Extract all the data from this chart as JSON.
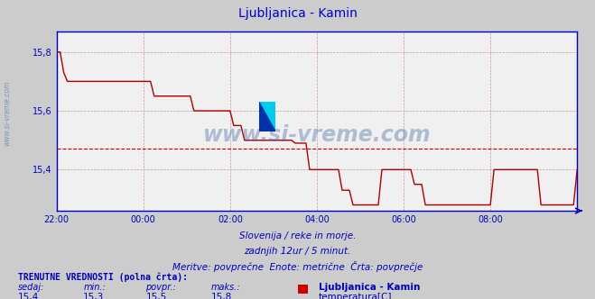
{
  "title": "Ljubljanica - Kamin",
  "title_color": "#0000cc",
  "bg_color": "#cccccc",
  "plot_bg_color": "#f0f0f0",
  "line_color": "#aa0000",
  "avg_line_color": "#cc0000",
  "avg_line_value": 15.47,
  "grid_color": "#cc9999",
  "axis_color": "#0000bb",
  "xmin": 0,
  "xmax": 144,
  "ymin": 15.26,
  "ymax": 15.87,
  "yticks": [
    15.4,
    15.6,
    15.8
  ],
  "ytick_labels": [
    "15,4",
    "15,6",
    "15,8"
  ],
  "xtick_positions": [
    0,
    24,
    48,
    72,
    96,
    120,
    144
  ],
  "xtick_labels": [
    "22:00",
    "00:00",
    "02:00",
    "04:00",
    "06:00",
    "08:00",
    ""
  ],
  "subtitle1": "Slovenija / reke in morje.",
  "subtitle2": "zadnjih 12ur / 5 minut.",
  "subtitle3": "Meritve: povprečne  Enote: metrične  Črta: povprečje",
  "footer_bold": "TRENUTNE VREDNOSTI (polna črta):",
  "footer_labels": [
    "sedaj:",
    "min.:",
    "povpr.:",
    "maks.:"
  ],
  "footer_values": [
    "15,4",
    "15,3",
    "15,5",
    "15,8"
  ],
  "legend_label": "Ljubljanica - Kamin",
  "legend_sublabel": "temperatura[C]",
  "legend_color": "#cc0000",
  "watermark_text": "www.si-vreme.com",
  "sidewatermark": "www.si-vreme.com",
  "data_x": [
    0,
    1,
    2,
    3,
    4,
    5,
    6,
    7,
    8,
    9,
    10,
    11,
    12,
    13,
    14,
    15,
    16,
    17,
    18,
    19,
    20,
    21,
    22,
    23,
    24,
    25,
    26,
    27,
    28,
    29,
    30,
    31,
    32,
    33,
    34,
    35,
    36,
    37,
    38,
    39,
    40,
    41,
    42,
    43,
    44,
    45,
    46,
    47,
    48,
    49,
    50,
    51,
    52,
    53,
    54,
    55,
    56,
    57,
    58,
    59,
    60,
    61,
    62,
    63,
    64,
    65,
    66,
    67,
    68,
    69,
    70,
    71,
    72,
    73,
    74,
    75,
    76,
    77,
    78,
    79,
    80,
    81,
    82,
    83,
    84,
    85,
    86,
    87,
    88,
    89,
    90,
    91,
    92,
    93,
    94,
    95,
    96,
    97,
    98,
    99,
    100,
    101,
    102,
    103,
    104,
    105,
    106,
    107,
    108,
    109,
    110,
    111,
    112,
    113,
    114,
    115,
    116,
    117,
    118,
    119,
    120,
    121,
    122,
    123,
    124,
    125,
    126,
    127,
    128,
    129,
    130,
    131,
    132,
    133,
    134,
    135,
    136,
    137,
    138,
    139,
    140,
    141,
    142,
    143,
    144
  ],
  "data_y": [
    15.8,
    15.8,
    15.73,
    15.7,
    15.7,
    15.7,
    15.7,
    15.7,
    15.7,
    15.7,
    15.7,
    15.7,
    15.7,
    15.7,
    15.7,
    15.7,
    15.7,
    15.7,
    15.7,
    15.7,
    15.7,
    15.7,
    15.7,
    15.7,
    15.7,
    15.7,
    15.7,
    15.65,
    15.65,
    15.65,
    15.65,
    15.65,
    15.65,
    15.65,
    15.65,
    15.65,
    15.65,
    15.65,
    15.6,
    15.6,
    15.6,
    15.6,
    15.6,
    15.6,
    15.6,
    15.6,
    15.6,
    15.6,
    15.6,
    15.55,
    15.55,
    15.55,
    15.5,
    15.5,
    15.5,
    15.5,
    15.5,
    15.5,
    15.5,
    15.5,
    15.5,
    15.5,
    15.5,
    15.5,
    15.5,
    15.5,
    15.49,
    15.49,
    15.49,
    15.49,
    15.4,
    15.4,
    15.4,
    15.4,
    15.4,
    15.4,
    15.4,
    15.4,
    15.4,
    15.33,
    15.33,
    15.33,
    15.28,
    15.28,
    15.28,
    15.28,
    15.28,
    15.28,
    15.28,
    15.28,
    15.4,
    15.4,
    15.4,
    15.4,
    15.4,
    15.4,
    15.4,
    15.4,
    15.4,
    15.35,
    15.35,
    15.35,
    15.28,
    15.28,
    15.28,
    15.28,
    15.28,
    15.28,
    15.28,
    15.28,
    15.28,
    15.28,
    15.28,
    15.28,
    15.28,
    15.28,
    15.28,
    15.28,
    15.28,
    15.28,
    15.28,
    15.4,
    15.4,
    15.4,
    15.4,
    15.4,
    15.4,
    15.4,
    15.4,
    15.4,
    15.4,
    15.4,
    15.4,
    15.4,
    15.28,
    15.28,
    15.28,
    15.28,
    15.28,
    15.28,
    15.28,
    15.28,
    15.28,
    15.28,
    15.4
  ]
}
